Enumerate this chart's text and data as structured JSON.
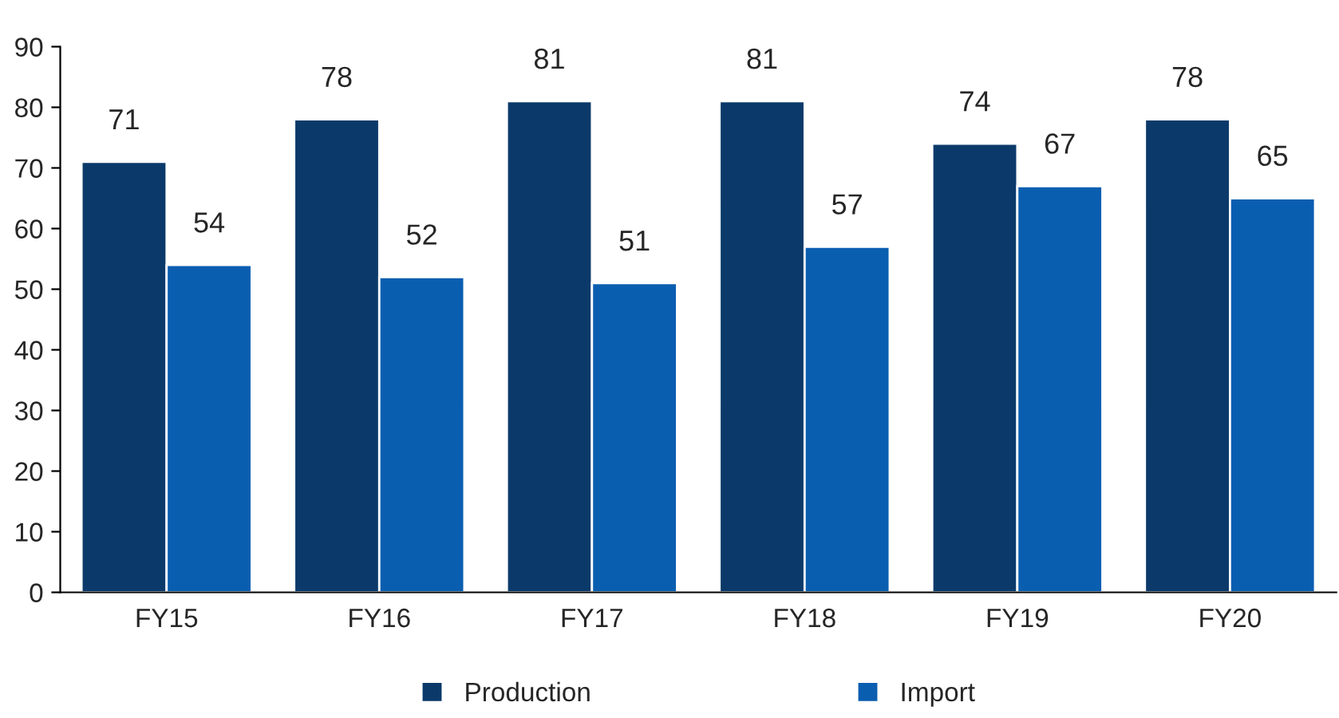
{
  "chart_data": {
    "type": "bar",
    "categories": [
      "FY15",
      "FY16",
      "FY17",
      "FY18",
      "FY19",
      "FY20"
    ],
    "series": [
      {
        "name": "Production",
        "color": "#0b3a6a",
        "values": [
          71,
          78,
          81,
          81,
          74,
          78
        ]
      },
      {
        "name": "Import",
        "color": "#0a5eb0",
        "values": [
          54,
          52,
          51,
          57,
          67,
          65
        ]
      }
    ],
    "ylim": [
      0,
      90
    ],
    "yticks": [
      0,
      10,
      20,
      30,
      40,
      50,
      60,
      70,
      80,
      90
    ],
    "data_labels": true,
    "grid": false,
    "legend": "bottom"
  }
}
